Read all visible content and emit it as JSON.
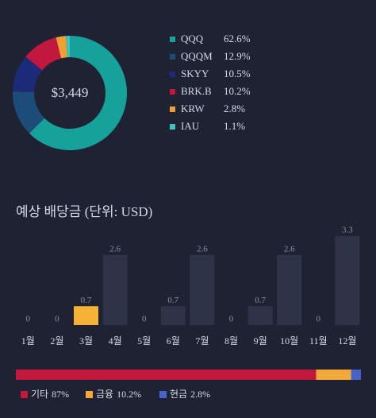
{
  "chart_data": [
    {
      "type": "pie",
      "center_label": "$3,449",
      "categories": [
        "QQQ",
        "QQQM",
        "SKYY",
        "BRK.B",
        "KRW",
        "IAU"
      ],
      "values": [
        62.6,
        12.9,
        10.5,
        10.2,
        2.8,
        1.1
      ],
      "value_labels": [
        "62.6%",
        "12.9%",
        "10.5%",
        "10.2%",
        "2.8%",
        "1.1%"
      ],
      "colors": [
        "#17a19b",
        "#1b4d78",
        "#1c2a7a",
        "#c2173f",
        "#f0a030",
        "#3fc2c2"
      ]
    },
    {
      "type": "bar",
      "title": "예상 배당금 (단위: USD)",
      "categories": [
        "1월",
        "2월",
        "3월",
        "4월",
        "5월",
        "6월",
        "7월",
        "8월",
        "9월",
        "10월",
        "11월",
        "12월"
      ],
      "values": [
        0,
        0,
        0.7,
        2.6,
        0,
        0.7,
        2.6,
        0,
        0.7,
        2.6,
        0,
        3.3
      ],
      "colors": [
        "#2e3347",
        "#2e3347",
        "#f5b335",
        "#2e3347",
        "#2e3347",
        "#2e3347",
        "#2e3347",
        "#2e3347",
        "#2e3347",
        "#2e3347",
        "#2e3347",
        "#2e3347"
      ],
      "ylim": [
        0,
        3.3
      ]
    },
    {
      "type": "stacked_bar",
      "series": [
        {
          "name": "기타",
          "color": "#c2173f",
          "values": [
            87
          ],
          "value_labels": [
            "87%"
          ]
        },
        {
          "name": "금융",
          "color": "#f5a83a",
          "values": [
            10.2
          ],
          "value_labels": [
            "10.2%"
          ]
        },
        {
          "name": "현금",
          "color": "#4563c8",
          "values": [
            2.8
          ],
          "value_labels": [
            "2.8%"
          ]
        }
      ]
    }
  ]
}
